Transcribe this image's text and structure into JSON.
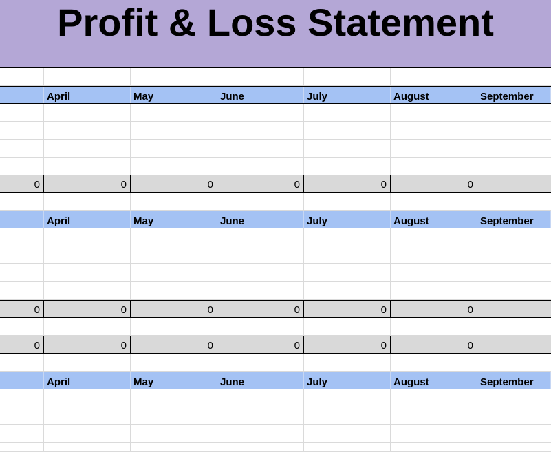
{
  "title": "Profit & Loss Statement",
  "months": [
    "April",
    "May",
    "June",
    "July",
    "August",
    "September"
  ],
  "totals_row_1": [
    "0",
    "0",
    "0",
    "0",
    "0",
    "0",
    ""
  ],
  "totals_row_2": [
    "0",
    "0",
    "0",
    "0",
    "0",
    "0",
    ""
  ],
  "totals_row_3": [
    "0",
    "0",
    "0",
    "0",
    "0",
    "0",
    ""
  ]
}
